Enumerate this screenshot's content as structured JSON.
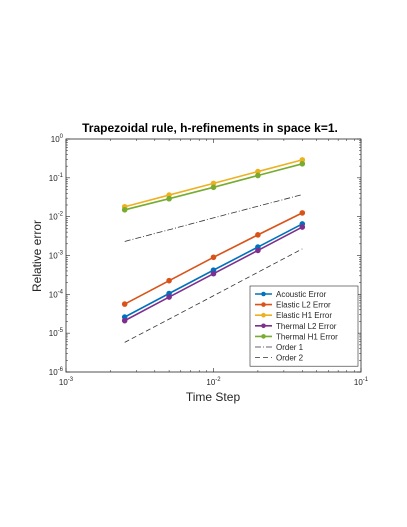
{
  "chart_data": {
    "type": "line",
    "title": "Trapezoidal rule, h-refinements in space k=1.",
    "xlabel": "Time Step",
    "ylabel": "Relative error",
    "xscale": "log",
    "yscale": "log",
    "xlim": [
      0.001,
      0.1
    ],
    "ylim": [
      1e-06,
      1
    ],
    "x_ticks": [
      {
        "base": "10",
        "exp": "-3",
        "value": 0.001
      },
      {
        "base": "10",
        "exp": "-2",
        "value": 0.01
      },
      {
        "base": "10",
        "exp": "-1",
        "value": 0.1
      }
    ],
    "y_ticks": [
      {
        "base": "10",
        "exp": "-6",
        "value": 1e-06
      },
      {
        "base": "10",
        "exp": "-5",
        "value": 1e-05
      },
      {
        "base": "10",
        "exp": "-4",
        "value": 0.0001
      },
      {
        "base": "10",
        "exp": "-3",
        "value": 0.001
      },
      {
        "base": "10",
        "exp": "-2",
        "value": 0.01
      },
      {
        "base": "10",
        "exp": "-1",
        "value": 0.1
      },
      {
        "base": "10",
        "exp": "0",
        "value": 1
      }
    ],
    "grid": false,
    "legend_position": "bottom-right",
    "x": [
      0.0025,
      0.005,
      0.01,
      0.02,
      0.04
    ],
    "series": [
      {
        "name": "Acoustic Error",
        "color": "#0072BD",
        "style": "solid",
        "marker": "circle",
        "values": [
          2.6e-05,
          0.000105,
          0.00042,
          0.00165,
          0.0065
        ]
      },
      {
        "name": "Elastic L2 Error",
        "color": "#D95319",
        "style": "solid",
        "marker": "circle",
        "values": [
          5.6e-05,
          0.000225,
          0.0009,
          0.0034,
          0.0125
        ]
      },
      {
        "name": "Elastic H1 Error",
        "color": "#EDB120",
        "style": "solid",
        "marker": "circle",
        "values": [
          0.018,
          0.036,
          0.072,
          0.145,
          0.29
        ]
      },
      {
        "name": "Thermal L2 Error",
        "color": "#7E2F8E",
        "style": "solid",
        "marker": "circle",
        "values": [
          2.1e-05,
          8.5e-05,
          0.00034,
          0.00135,
          0.0054
        ]
      },
      {
        "name": "Thermal H1 Error",
        "color": "#77AC30",
        "style": "solid",
        "marker": "circle",
        "values": [
          0.015,
          0.029,
          0.057,
          0.115,
          0.23
        ]
      },
      {
        "name": "Order 1",
        "color": "#333333",
        "style": "dashdot",
        "marker": "none",
        "values": [
          0.0023,
          0.0046,
          0.0093,
          0.0186,
          0.037
        ]
      },
      {
        "name": "Order 2",
        "color": "#333333",
        "style": "dashed",
        "marker": "none",
        "values": [
          5.8e-06,
          2.3e-05,
          9.2e-05,
          0.00037,
          0.00148
        ]
      }
    ]
  }
}
